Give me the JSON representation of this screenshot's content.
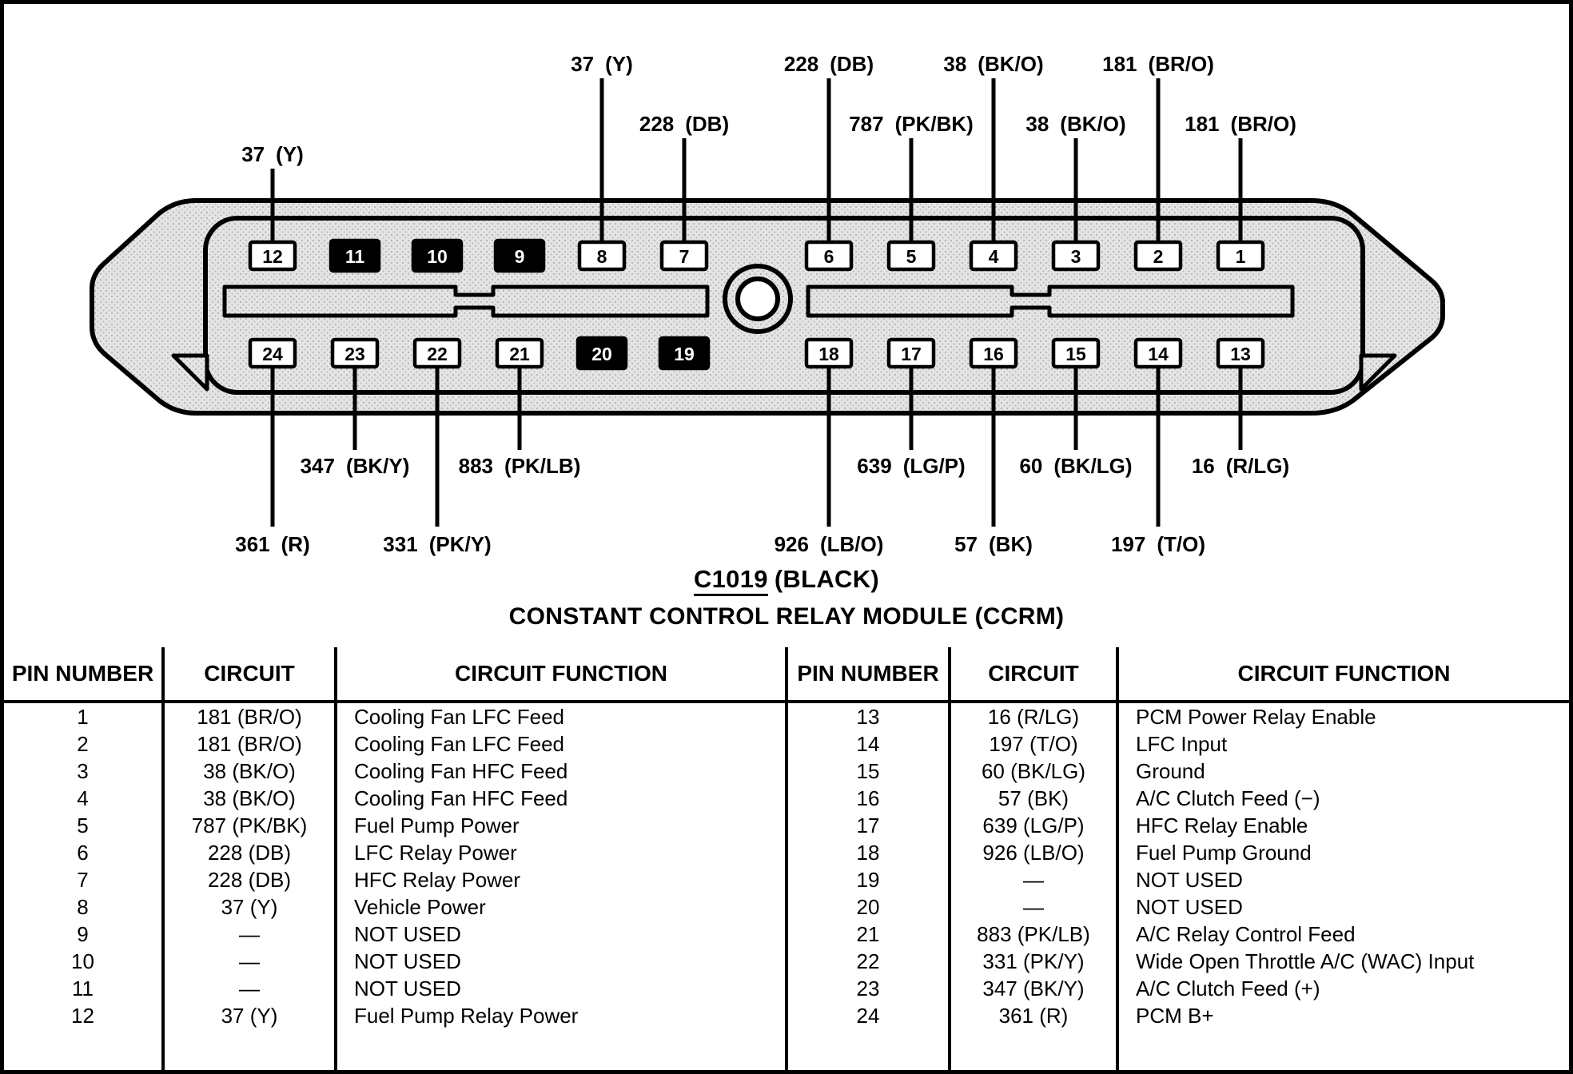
{
  "colors": {
    "ink": "#000000",
    "shell_fill": "#e4e4e4",
    "stipple_dot": "#a9a9a9",
    "pin_open_fill": "#ffffff",
    "pin_filled_fill": "#000000"
  },
  "diagram": {
    "connector_id": "C1019",
    "connector_color": "(BLACK)",
    "subtitle": "CONSTANT CONTROL RELAY MODULE (CCRM)",
    "pins": {
      "top": [
        {
          "n": 12,
          "filled": false
        },
        {
          "n": 11,
          "filled": true
        },
        {
          "n": 10,
          "filled": true
        },
        {
          "n": 9,
          "filled": true
        },
        {
          "n": 8,
          "filled": false
        },
        {
          "n": 7,
          "filled": false
        },
        {
          "n": 6,
          "filled": false
        },
        {
          "n": 5,
          "filled": false
        },
        {
          "n": 4,
          "filled": false
        },
        {
          "n": 3,
          "filled": false
        },
        {
          "n": 2,
          "filled": false
        },
        {
          "n": 1,
          "filled": false
        }
      ],
      "bottom": [
        {
          "n": 24,
          "filled": false
        },
        {
          "n": 23,
          "filled": false
        },
        {
          "n": 22,
          "filled": false
        },
        {
          "n": 21,
          "filled": false
        },
        {
          "n": 20,
          "filled": true
        },
        {
          "n": 19,
          "filled": true
        },
        {
          "n": 18,
          "filled": false
        },
        {
          "n": 17,
          "filled": false
        },
        {
          "n": 16,
          "filled": false
        },
        {
          "n": 15,
          "filled": false
        },
        {
          "n": 14,
          "filled": false
        },
        {
          "n": 13,
          "filled": false
        }
      ]
    },
    "wire_labels": [
      {
        "pin": 8,
        "wire": "37",
        "color": "(Y)",
        "side": "top",
        "tier": 1
      },
      {
        "pin": 6,
        "wire": "228",
        "color": "(DB)",
        "side": "top",
        "tier": 1
      },
      {
        "pin": 4,
        "wire": "38",
        "color": "(BK/O)",
        "side": "top",
        "tier": 1
      },
      {
        "pin": 2,
        "wire": "181",
        "color": "(BR/O)",
        "side": "top",
        "tier": 1
      },
      {
        "pin": 12,
        "wire": "37",
        "color": "(Y)",
        "side": "top",
        "tier": 2
      },
      {
        "pin": 7,
        "wire": "228",
        "color": "(DB)",
        "side": "top",
        "tier": 2
      },
      {
        "pin": 5,
        "wire": "787",
        "color": "(PK/BK)",
        "side": "top",
        "tier": 2
      },
      {
        "pin": 3,
        "wire": "38",
        "color": "(BK/O)",
        "side": "top",
        "tier": 2
      },
      {
        "pin": 1,
        "wire": "181",
        "color": "(BR/O)",
        "side": "top",
        "tier": 2
      },
      {
        "pin": 23,
        "wire": "347",
        "color": "(BK/Y)",
        "side": "bottom",
        "tier": 1
      },
      {
        "pin": 21,
        "wire": "883",
        "color": "(PK/LB)",
        "side": "bottom",
        "tier": 1
      },
      {
        "pin": 17,
        "wire": "639",
        "color": "(LG/P)",
        "side": "bottom",
        "tier": 1
      },
      {
        "pin": 15,
        "wire": "60",
        "color": "(BK/LG)",
        "side": "bottom",
        "tier": 1
      },
      {
        "pin": 13,
        "wire": "16",
        "color": "(R/LG)",
        "side": "bottom",
        "tier": 1
      },
      {
        "pin": 24,
        "wire": "361",
        "color": "(R)",
        "side": "bottom",
        "tier": 2
      },
      {
        "pin": 22,
        "wire": "331",
        "color": "(PK/Y)",
        "side": "bottom",
        "tier": 2
      },
      {
        "pin": 18,
        "wire": "926",
        "color": "(LB/O)",
        "side": "bottom",
        "tier": 2
      },
      {
        "pin": 16,
        "wire": "57",
        "color": "(BK)",
        "side": "bottom",
        "tier": 2
      },
      {
        "pin": 14,
        "wire": "197",
        "color": "(T/O)",
        "side": "bottom",
        "tier": 2
      }
    ]
  },
  "table": {
    "headers": [
      "PIN NUMBER",
      "CIRCUIT",
      "CIRCUIT FUNCTION"
    ],
    "left_rows": [
      {
        "pin": "1",
        "circuit": "181 (BR/O)",
        "function": "Cooling Fan LFC Feed"
      },
      {
        "pin": "2",
        "circuit": "181 (BR/O)",
        "function": "Cooling Fan LFC Feed"
      },
      {
        "pin": "3",
        "circuit": "38 (BK/O)",
        "function": "Cooling Fan HFC Feed"
      },
      {
        "pin": "4",
        "circuit": "38 (BK/O)",
        "function": "Cooling Fan HFC Feed"
      },
      {
        "pin": "5",
        "circuit": "787 (PK/BK)",
        "function": "Fuel Pump Power"
      },
      {
        "pin": "6",
        "circuit": "228 (DB)",
        "function": "LFC Relay Power"
      },
      {
        "pin": "7",
        "circuit": "228 (DB)",
        "function": "HFC Relay Power"
      },
      {
        "pin": "8",
        "circuit": "37 (Y)",
        "function": "Vehicle Power"
      },
      {
        "pin": "9",
        "circuit": "—",
        "function": "NOT USED"
      },
      {
        "pin": "10",
        "circuit": "—",
        "function": "NOT USED"
      },
      {
        "pin": "11",
        "circuit": "—",
        "function": "NOT USED"
      },
      {
        "pin": "12",
        "circuit": "37 (Y)",
        "function": "Fuel Pump Relay Power"
      }
    ],
    "right_rows": [
      {
        "pin": "13",
        "circuit": "16 (R/LG)",
        "function": "PCM Power Relay Enable"
      },
      {
        "pin": "14",
        "circuit": "197 (T/O)",
        "function": "LFC Input"
      },
      {
        "pin": "15",
        "circuit": "60 (BK/LG)",
        "function": "Ground"
      },
      {
        "pin": "16",
        "circuit": "57 (BK)",
        "function": "A/C Clutch Feed (−)"
      },
      {
        "pin": "17",
        "circuit": "639 (LG/P)",
        "function": "HFC Relay Enable"
      },
      {
        "pin": "18",
        "circuit": "926 (LB/O)",
        "function": "Fuel Pump Ground"
      },
      {
        "pin": "19",
        "circuit": "—",
        "function": "NOT USED"
      },
      {
        "pin": "20",
        "circuit": "—",
        "function": "NOT USED"
      },
      {
        "pin": "21",
        "circuit": "883 (PK/LB)",
        "function": "A/C Relay Control Feed"
      },
      {
        "pin": "22",
        "circuit": "331 (PK/Y)",
        "function": "Wide Open Throttle A/C (WAC) Input"
      },
      {
        "pin": "23",
        "circuit": "347 (BK/Y)",
        "function": "A/C Clutch Feed (+)"
      },
      {
        "pin": "24",
        "circuit": "361 (R)",
        "function": "PCM B+"
      }
    ]
  }
}
